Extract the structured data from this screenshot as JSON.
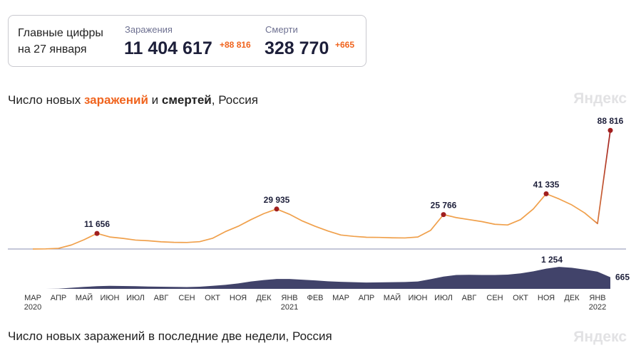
{
  "header": {
    "title_line1": "Главные цифры",
    "title_line2": "на 27 января",
    "cases_label": "Заражения",
    "cases_total": "11 404 617",
    "cases_delta": "+88 816",
    "deaths_label": "Смерти",
    "deaths_total": "328 770",
    "deaths_delta": "+665"
  },
  "title_parts": [
    "Число новых ",
    "заражений",
    " и ",
    "смертей",
    ", Россия"
  ],
  "brand": "Яндекс",
  "footer_title": "Число новых заражений в последние две недели, Россия",
  "chart_data": {
    "type": "line",
    "categories": [
      "МАР",
      null,
      "АПР",
      null,
      "МАЙ",
      null,
      "ИЮН",
      null,
      "ИЮЛ",
      null,
      "АВГ",
      null,
      "СЕН",
      null,
      "ОКТ",
      null,
      "НОЯ",
      null,
      "ДЕК",
      null,
      "ЯНВ",
      null,
      "ФЕВ",
      null,
      "МАР",
      null,
      "АПР",
      null,
      "МАЙ",
      null,
      "ИЮН",
      null,
      "ИЮЛ",
      null,
      "АВГ",
      null,
      "СЕН",
      null,
      "ОКТ",
      null,
      "НОЯ",
      null,
      "ДЕК",
      null,
      "ЯНВ",
      null
    ],
    "year_labels": {
      "0": "2020",
      "20": "2021",
      "44": "2022"
    },
    "ylim": [
      0,
      90000
    ],
    "y2lim": [
      0,
      1500
    ],
    "accent_color": "#a01e1e",
    "series": [
      {
        "type": "line",
        "color": "#f0a04b",
        "values": [
          0,
          100,
          500,
          3000,
          7000,
          11656,
          9000,
          8000,
          6700,
          6200,
          5400,
          5000,
          4900,
          5500,
          8000,
          13000,
          17000,
          22000,
          26500,
          29935,
          26000,
          21000,
          17000,
          13500,
          10500,
          9500,
          8800,
          8700,
          8400,
          8300,
          9000,
          14000,
          25766,
          23500,
          22000,
          20500,
          18500,
          18000,
          22000,
          30000,
          41335,
          37500,
          33000,
          27000,
          19000,
          88816
        ],
        "value_labels": [
          null,
          null,
          null,
          null,
          null,
          "11 656",
          null,
          null,
          null,
          null,
          null,
          null,
          null,
          null,
          null,
          null,
          null,
          null,
          null,
          "29 935",
          null,
          null,
          null,
          null,
          null,
          null,
          null,
          null,
          null,
          null,
          null,
          null,
          "25 766",
          null,
          null,
          null,
          null,
          null,
          null,
          null,
          "41 335",
          null,
          null,
          null,
          null,
          "88 816"
        ]
      },
      {
        "type": "area",
        "axis": "y2",
        "color": "#41436a",
        "values": [
          0,
          2,
          10,
          60,
          110,
          150,
          170,
          160,
          150,
          130,
          120,
          110,
          100,
          120,
          170,
          230,
          310,
          420,
          500,
          560,
          560,
          520,
          480,
          430,
          400,
          380,
          360,
          370,
          380,
          390,
          420,
          550,
          700,
          790,
          800,
          790,
          790,
          810,
          880,
          1000,
          1150,
          1254,
          1200,
          1100,
          980,
          665
        ],
        "value_labels": [
          null,
          null,
          null,
          null,
          null,
          null,
          null,
          null,
          null,
          null,
          null,
          null,
          null,
          null,
          null,
          null,
          null,
          null,
          null,
          null,
          null,
          null,
          null,
          null,
          null,
          null,
          null,
          null,
          null,
          null,
          null,
          null,
          null,
          null,
          null,
          null,
          null,
          null,
          null,
          null,
          null,
          "1 254",
          null,
          null,
          null,
          "665"
        ]
      }
    ]
  }
}
